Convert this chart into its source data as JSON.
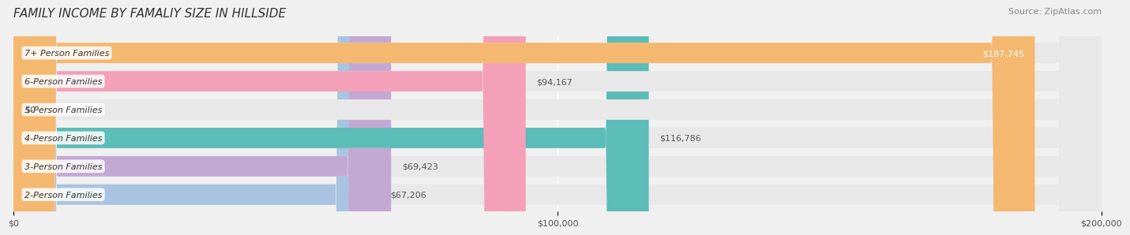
{
  "title": "FAMILY INCOME BY FAMALIY SIZE IN HILLSIDE",
  "source": "Source: ZipAtlas.com",
  "categories": [
    "2-Person Families",
    "3-Person Families",
    "4-Person Families",
    "5-Person Families",
    "6-Person Families",
    "7+ Person Families"
  ],
  "values": [
    67206,
    69423,
    116786,
    0,
    94167,
    187745
  ],
  "bar_colors": [
    "#a8c4e0",
    "#c4a8d4",
    "#5bbcb8",
    "#b8b8e8",
    "#f4a0b8",
    "#f4b870"
  ],
  "label_colors": [
    "#333333",
    "#333333",
    "#333333",
    "#333333",
    "#333333",
    "#ffffff"
  ],
  "value_labels": [
    "$67,206",
    "$69,423",
    "$116,786",
    "$0",
    "$94,167",
    "$187,745"
  ],
  "xlim": [
    0,
    200000
  ],
  "xtick_values": [
    0,
    100000,
    200000
  ],
  "xtick_labels": [
    "$0",
    "$100,000",
    "$200,000"
  ],
  "background_color": "#f0f0f0",
  "bar_background_color": "#e8e8e8",
  "title_fontsize": 11,
  "source_fontsize": 8,
  "label_fontsize": 8,
  "value_fontsize": 8
}
